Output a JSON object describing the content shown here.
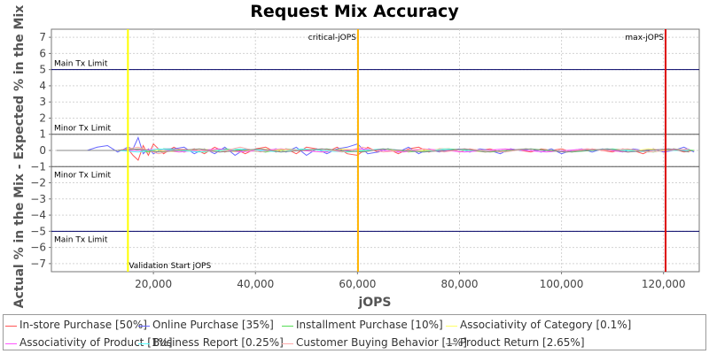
{
  "chart_data": {
    "type": "line",
    "title": "Request Mix Accuracy",
    "xlabel": "jOPS",
    "ylabel": "Actual % in the Mix - Expected % in the Mix",
    "xlim": [
      0,
      127000
    ],
    "ylim": [
      -7.5,
      7.5
    ],
    "x_ticks": [
      20000,
      40000,
      60000,
      80000,
      100000,
      120000
    ],
    "x_tick_labels": [
      "20,000",
      "40,000",
      "60,000",
      "80,000",
      "100,000",
      "120,000"
    ],
    "y_ticks": [
      -7,
      -6,
      -5,
      -4,
      -3,
      -2,
      -1,
      0,
      1,
      2,
      3,
      4,
      5,
      6,
      7
    ],
    "y_tick_labels": [
      "−7",
      "−6",
      "−5",
      "−4",
      "−3",
      "−2",
      "−1",
      "0",
      "1",
      "2",
      "3",
      "4",
      "5",
      "6",
      "7"
    ],
    "grid": true,
    "legend_position": "bottom",
    "limit_lines": [
      {
        "label": "Main Tx Limit",
        "y": 5,
        "color": "#000066"
      },
      {
        "label": "Minor Tx Limit",
        "y": 1,
        "color": "#555555"
      },
      {
        "label": "Minor Tx Limit",
        "y": -1,
        "color": "#555555"
      },
      {
        "label": "Main Tx Limit",
        "y": -5,
        "color": "#000066"
      }
    ],
    "markers": [
      {
        "label": "Validation Start jOPS",
        "x": 15000,
        "color": "#ffff00"
      },
      {
        "label": "critical-jOPS",
        "x": 60100,
        "color": "#ffb300"
      },
      {
        "label": "max-jOPS",
        "x": 120400,
        "color": "#dd0000"
      }
    ],
    "series": [
      {
        "name": "In-store Purchase [50%]",
        "color": "#ff5555",
        "x": [
          1000,
          3000,
          5000,
          7000,
          9000,
          11000,
          13000,
          15000,
          16000,
          17000,
          18000,
          19000,
          20000,
          22000,
          24000,
          26000,
          28000,
          30000,
          32000,
          34000,
          36000,
          38000,
          40000,
          42000,
          44000,
          46000,
          48000,
          50000,
          52000,
          54000,
          56000,
          58000,
          60000,
          62000,
          64000,
          66000,
          68000,
          70000,
          72000,
          74000,
          76000,
          78000,
          80000,
          82000,
          84000,
          86000,
          88000,
          90000,
          92000,
          94000,
          96000,
          98000,
          100000,
          102000,
          104000,
          106000,
          108000,
          110000,
          112000,
          114000,
          116000,
          118000,
          120000,
          122000,
          124000,
          126000
        ],
        "values": [
          0,
          0,
          0,
          0,
          0,
          0,
          0,
          0.1,
          -0.3,
          -0.6,
          0.3,
          -0.3,
          0.4,
          -0.2,
          0.2,
          -0.1,
          0.1,
          -0.2,
          0.2,
          -0.1,
          0.1,
          -0.2,
          0.1,
          0.2,
          -0.1,
          0.1,
          -0.2,
          0.2,
          0.1,
          -0.1,
          0.2,
          -0.2,
          -0.3,
          0.2,
          -0.1,
          0.1,
          -0.2,
          0.1,
          0.2,
          -0.1,
          0.1,
          0.1,
          -0.1,
          0.1,
          0,
          0.1,
          -0.1,
          0.1,
          0,
          -0.1,
          0.1,
          0,
          0.1,
          -0.1,
          0,
          0.1,
          0,
          -0.1,
          0.1,
          0,
          -0.2,
          0.1,
          -0.1,
          0.1,
          -0.1,
          0
        ]
      },
      {
        "name": "Online Purchase [35%]",
        "color": "#6666ff",
        "x": [
          1000,
          3000,
          5000,
          7000,
          9000,
          11000,
          13000,
          15000,
          16000,
          17000,
          18000,
          19000,
          20000,
          22000,
          24000,
          26000,
          28000,
          30000,
          32000,
          34000,
          36000,
          38000,
          40000,
          42000,
          44000,
          46000,
          48000,
          50000,
          52000,
          54000,
          56000,
          58000,
          60000,
          62000,
          64000,
          66000,
          68000,
          70000,
          72000,
          74000,
          76000,
          78000,
          80000,
          82000,
          84000,
          86000,
          88000,
          90000,
          92000,
          94000,
          96000,
          98000,
          100000,
          102000,
          104000,
          106000,
          108000,
          110000,
          112000,
          114000,
          116000,
          118000,
          120000,
          122000,
          124000,
          126000
        ],
        "values": [
          0,
          0,
          0,
          0,
          0.2,
          0.3,
          -0.1,
          0.2,
          0.1,
          0.8,
          -0.2,
          0.1,
          -0.2,
          0.1,
          0.1,
          0.2,
          -0.2,
          0.1,
          -0.2,
          0.2,
          -0.3,
          0.1,
          0,
          -0.1,
          0.1,
          -0.1,
          0.2,
          -0.3,
          0.1,
          -0.2,
          0.1,
          0.2,
          0.4,
          -0.2,
          -0.1,
          0.1,
          -0.1,
          0.2,
          -0.2,
          0.1,
          -0.1,
          0,
          0.1,
          -0.1,
          0.1,
          0,
          -0.2,
          0.1,
          0,
          0.1,
          -0.1,
          0.1,
          -0.2,
          0,
          0.1,
          -0.1,
          0.1,
          0,
          -0.1,
          0.1,
          0,
          0.1,
          -0.1,
          0,
          0.2,
          -0.1
        ]
      },
      {
        "name": "Installment Purchase [10%]",
        "color": "#55dd55",
        "x": [
          1000,
          5000,
          9000,
          13000,
          16000,
          19000,
          22000,
          26000,
          30000,
          34000,
          38000,
          42000,
          46000,
          50000,
          54000,
          58000,
          62000,
          66000,
          70000,
          74000,
          78000,
          82000,
          86000,
          90000,
          94000,
          98000,
          102000,
          106000,
          110000,
          114000,
          118000,
          122000,
          126000
        ],
        "values": [
          0,
          0,
          0,
          0,
          0.1,
          -0.1,
          0.1,
          0,
          -0.1,
          0.1,
          0,
          -0.1,
          0.1,
          0,
          0.1,
          -0.1,
          0,
          0.1,
          -0.1,
          0,
          0.1,
          0,
          -0.1,
          0,
          0.1,
          0,
          -0.1,
          0,
          0.1,
          0,
          -0.1,
          0.1,
          0
        ]
      },
      {
        "name": "Associativity of Category [0.1%]",
        "color": "#ffff66",
        "x": [
          1000,
          5000,
          9000,
          13000,
          17000,
          21000,
          25000,
          29000,
          33000,
          37000,
          41000,
          45000,
          49000,
          53000,
          57000,
          61000,
          65000,
          69000,
          73000,
          77000,
          81000,
          85000,
          89000,
          93000,
          97000,
          101000,
          105000,
          109000,
          113000,
          117000,
          121000,
          125000
        ],
        "values": [
          0,
          0,
          0,
          0,
          0.1,
          0,
          -0.1,
          0.1,
          0,
          -0.1,
          0.1,
          0,
          0,
          -0.1,
          0.1,
          0,
          0.1,
          -0.1,
          0,
          0.1,
          0,
          -0.1,
          0,
          0.1,
          0,
          -0.1,
          0.1,
          0,
          -0.1,
          0.1,
          0,
          0
        ]
      },
      {
        "name": "Associativity of Product [1%]",
        "color": "#ff55ff",
        "x": [
          1000,
          5000,
          9000,
          13000,
          17000,
          21000,
          25000,
          29000,
          33000,
          37000,
          41000,
          45000,
          49000,
          53000,
          57000,
          61000,
          65000,
          69000,
          73000,
          77000,
          81000,
          85000,
          89000,
          93000,
          97000,
          101000,
          105000,
          109000,
          113000,
          117000,
          121000,
          125000
        ],
        "values": [
          0,
          0,
          0,
          0,
          0,
          0.1,
          -0.1,
          0,
          0.1,
          -0.1,
          0,
          0.1,
          0,
          -0.1,
          0,
          0.1,
          0,
          -0.1,
          0.1,
          0,
          -0.1,
          0,
          0.1,
          0,
          -0.1,
          0,
          0.1,
          0,
          -0.1,
          0,
          0.1,
          0
        ]
      },
      {
        "name": "Business Report [0.25%]",
        "color": "#55ffff",
        "x": [
          1000,
          5000,
          9000,
          13000,
          17000,
          21000,
          25000,
          29000,
          33000,
          37000,
          41000,
          45000,
          49000,
          53000,
          57000,
          61000,
          65000,
          69000,
          73000,
          77000,
          81000,
          85000,
          89000,
          93000,
          97000,
          101000,
          105000,
          109000,
          113000,
          117000,
          121000,
          125000
        ],
        "values": [
          0,
          0,
          0,
          0,
          -0.1,
          0.1,
          0,
          -0.1,
          0,
          0.1,
          0,
          -0.1,
          0.1,
          0,
          -0.1,
          0,
          0.1,
          0,
          -0.1,
          0.1,
          0,
          0,
          -0.1,
          0.1,
          0,
          -0.1,
          0,
          0.1,
          0,
          -0.1,
          0,
          0
        ]
      },
      {
        "name": "Customer Buying Behavior [1%]",
        "color": "#ffaaaa",
        "x": [
          1000,
          5000,
          9000,
          13000,
          17000,
          21000,
          25000,
          29000,
          33000,
          37000,
          41000,
          45000,
          49000,
          53000,
          57000,
          61000,
          65000,
          69000,
          73000,
          77000,
          81000,
          85000,
          89000,
          93000,
          97000,
          101000,
          105000,
          109000,
          113000,
          117000,
          121000,
          125000
        ],
        "values": [
          0,
          0,
          0,
          0,
          0.2,
          -0.2,
          0.1,
          0,
          -0.1,
          0.2,
          -0.1,
          0.1,
          0,
          0.1,
          -0.1,
          0.2,
          -0.1,
          0,
          0.1,
          -0.1,
          0.1,
          0,
          -0.1,
          0.1,
          0,
          -0.1,
          0.1,
          0,
          0.1,
          -0.1,
          0,
          0.1
        ]
      },
      {
        "name": "Product Return [2.65%]",
        "color": "#888888",
        "x": [
          1000,
          5000,
          9000,
          13000,
          17000,
          21000,
          25000,
          29000,
          33000,
          37000,
          41000,
          45000,
          49000,
          53000,
          57000,
          61000,
          65000,
          69000,
          73000,
          77000,
          81000,
          85000,
          89000,
          93000,
          97000,
          101000,
          105000,
          109000,
          113000,
          117000,
          121000,
          125000
        ],
        "values": [
          0,
          0,
          0,
          0,
          0.1,
          -0.1,
          0,
          0.1,
          -0.1,
          0,
          0.1,
          -0.1,
          0,
          0.1,
          0,
          -0.1,
          0.1,
          0,
          -0.1,
          0,
          0.1,
          -0.1,
          0,
          0.1,
          0,
          -0.1,
          0,
          0.1,
          -0.1,
          0,
          0.1,
          -0.1
        ]
      }
    ]
  }
}
